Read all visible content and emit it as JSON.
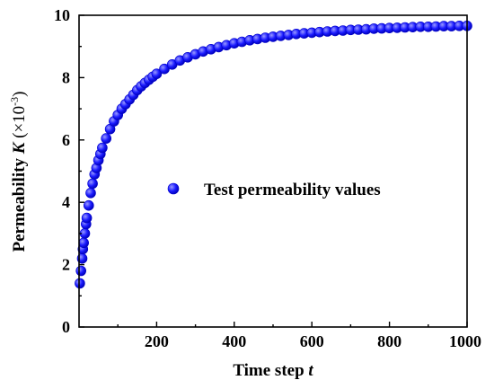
{
  "chart_data": {
    "type": "scatter",
    "title": "",
    "xlabel": {
      "text": "Time step ",
      "var": "t"
    },
    "ylabel": {
      "text": "Permeability ",
      "var": "K",
      "unit_prefix": " (×10",
      "unit_exp": "-3",
      "unit_suffix": ")"
    },
    "xlim": [
      0,
      1000
    ],
    "ylim": [
      0,
      10
    ],
    "x_ticks": [
      200,
      400,
      600,
      800,
      1000
    ],
    "y_ticks": [
      0,
      2,
      4,
      6,
      8,
      10
    ],
    "grid": false,
    "legend": {
      "placement": "center-right",
      "label": "Test permeability values"
    },
    "marker_color": "#1a1aff",
    "marker_edge": "#0000cc",
    "series": [
      {
        "name": "Test permeability values",
        "x": [
          2,
          5,
          8,
          10,
          12,
          15,
          18,
          20,
          25,
          30,
          35,
          40,
          45,
          50,
          55,
          60,
          70,
          80,
          90,
          100,
          110,
          120,
          130,
          140,
          150,
          160,
          170,
          180,
          190,
          200,
          220,
          240,
          260,
          280,
          300,
          320,
          340,
          360,
          380,
          400,
          420,
          440,
          460,
          480,
          500,
          520,
          540,
          560,
          580,
          600,
          620,
          640,
          660,
          680,
          700,
          720,
          740,
          760,
          780,
          800,
          820,
          840,
          860,
          880,
          900,
          920,
          940,
          960,
          980,
          1000
        ],
        "y": [
          1.4,
          1.8,
          2.2,
          2.5,
          2.7,
          3.0,
          3.3,
          3.5,
          3.9,
          4.3,
          4.6,
          4.9,
          5.1,
          5.35,
          5.55,
          5.75,
          6.05,
          6.35,
          6.6,
          6.8,
          7.0,
          7.15,
          7.3,
          7.45,
          7.6,
          7.72,
          7.83,
          7.93,
          8.03,
          8.12,
          8.28,
          8.42,
          8.55,
          8.65,
          8.75,
          8.84,
          8.91,
          8.98,
          9.04,
          9.1,
          9.15,
          9.2,
          9.24,
          9.28,
          9.31,
          9.34,
          9.37,
          9.4,
          9.42,
          9.44,
          9.46,
          9.48,
          9.5,
          9.51,
          9.53,
          9.54,
          9.55,
          9.57,
          9.58,
          9.59,
          9.6,
          9.61,
          9.62,
          9.63,
          9.63,
          9.64,
          9.65,
          9.65,
          9.66,
          9.66
        ]
      }
    ]
  }
}
